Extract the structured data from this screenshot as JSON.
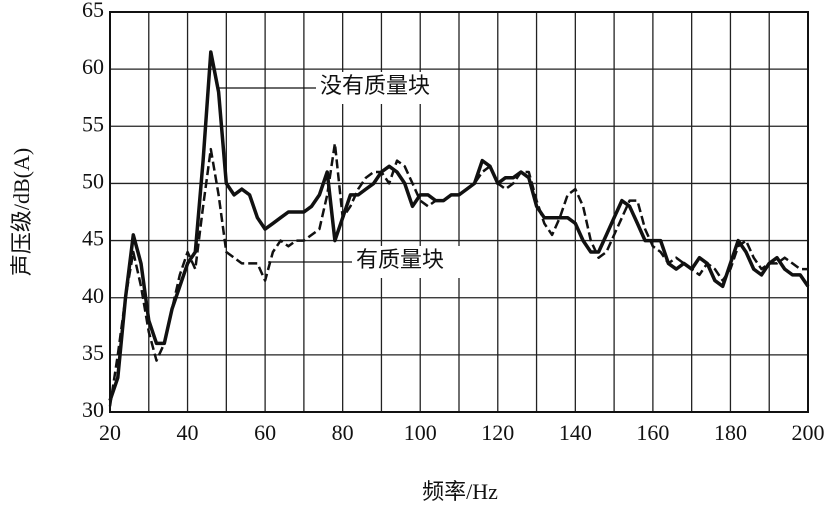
{
  "chart_data": {
    "type": "line",
    "x_label": "频率/Hz",
    "y_label": "声压级/dB(A)",
    "xlim": [
      20,
      200
    ],
    "ylim": [
      30,
      65
    ],
    "xticks": [
      20,
      40,
      60,
      80,
      100,
      120,
      140,
      160,
      180,
      200
    ],
    "x_minor_ticks": [
      30,
      50,
      70,
      90,
      110,
      130,
      150,
      170,
      190
    ],
    "yticks": [
      30,
      35,
      40,
      45,
      50,
      55,
      60,
      65
    ],
    "grid": true,
    "x": [
      20,
      22,
      24,
      26,
      28,
      30,
      32,
      34,
      36,
      38,
      40,
      42,
      44,
      46,
      48,
      50,
      52,
      54,
      56,
      58,
      60,
      62,
      64,
      66,
      68,
      70,
      72,
      74,
      76,
      78,
      80,
      82,
      84,
      86,
      88,
      90,
      92,
      94,
      96,
      98,
      100,
      102,
      104,
      106,
      108,
      110,
      112,
      114,
      116,
      118,
      120,
      122,
      124,
      126,
      128,
      130,
      132,
      134,
      136,
      138,
      140,
      142,
      144,
      146,
      148,
      150,
      152,
      154,
      156,
      158,
      160,
      162,
      164,
      166,
      168,
      170,
      172,
      174,
      176,
      178,
      180,
      182,
      184,
      186,
      188,
      190,
      192,
      194,
      196,
      198,
      200
    ],
    "series": [
      {
        "name": "没有质量块",
        "color": "#111111",
        "dash": false,
        "values": [
          31,
          33,
          40,
          45.5,
          43,
          38,
          36,
          36,
          39,
          41,
          43,
          44,
          52,
          61.5,
          58,
          50,
          49,
          49.5,
          49,
          47,
          46,
          46.5,
          47,
          47.5,
          47.5,
          47.5,
          48,
          49,
          51,
          45,
          47,
          49,
          49,
          49.5,
          50,
          51,
          51.5,
          51,
          50,
          48,
          49,
          49,
          48.5,
          48.5,
          49,
          49,
          49.5,
          50,
          52,
          51.5,
          50,
          50.5,
          50.5,
          51,
          50.5,
          48,
          47,
          47,
          47,
          47,
          46.5,
          45,
          44,
          44,
          45.5,
          47,
          48.5,
          48,
          46.5,
          45,
          45,
          45,
          43,
          42.5,
          43,
          42.5,
          43.5,
          43,
          41.5,
          41,
          43,
          45,
          44,
          42.5,
          42,
          43,
          43.5,
          42.5,
          42,
          42,
          41
        ]
      },
      {
        "name": "有质量块",
        "color": "#111111",
        "dash": true,
        "values": [
          30.5,
          35,
          40,
          44,
          41,
          37,
          34.5,
          36,
          39,
          42,
          44,
          42.5,
          48,
          53,
          49,
          44,
          43.5,
          43,
          43,
          43,
          41.5,
          44,
          45,
          44.5,
          45,
          45,
          45.5,
          46,
          49,
          53.5,
          47,
          48,
          49.5,
          50.5,
          51,
          51,
          50,
          52,
          51.5,
          50,
          48.5,
          48,
          48.5,
          48.5,
          49,
          49,
          49.5,
          50,
          51,
          51.5,
          50,
          49.5,
          50,
          51,
          51,
          48.5,
          46.5,
          45.5,
          47,
          49,
          49.5,
          48,
          45,
          43.5,
          44,
          45.5,
          47,
          48.5,
          48.5,
          46,
          44.5,
          44,
          43,
          43.5,
          43,
          42.5,
          42,
          43,
          42.5,
          41.5,
          42.5,
          44.5,
          45,
          43.5,
          42.5,
          43,
          43,
          43.5,
          43,
          42.5,
          42.5
        ]
      }
    ]
  }
}
